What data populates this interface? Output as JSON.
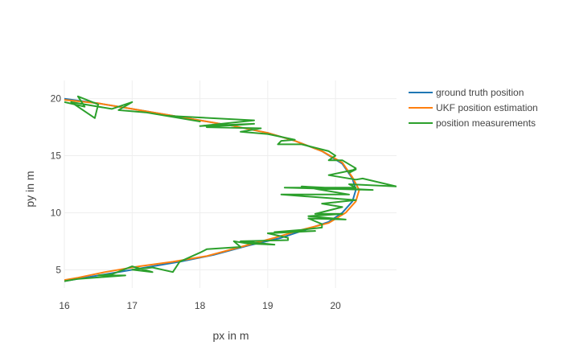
{
  "chart_data": {
    "type": "line",
    "xlabel": "px in m",
    "ylabel": "py in m",
    "xlim": [
      16,
      20.9
    ],
    "ylim": [
      3.4,
      21.6
    ],
    "x_ticks": [
      16,
      17,
      18,
      19,
      20
    ],
    "y_ticks": [
      5,
      10,
      15,
      20
    ],
    "grid": true,
    "legend_position": "top-right",
    "series": [
      {
        "name": "ground truth position",
        "color": "#1f77b4",
        "points": [
          [
            16.0,
            20.0
          ],
          [
            16.5,
            19.6
          ],
          [
            17.0,
            19.1
          ],
          [
            17.5,
            18.6
          ],
          [
            18.0,
            18.1
          ],
          [
            18.5,
            17.6
          ],
          [
            19.0,
            17.0
          ],
          [
            19.4,
            16.3
          ],
          [
            19.8,
            15.4
          ],
          [
            20.1,
            14.3
          ],
          [
            20.25,
            13.0
          ],
          [
            20.3,
            12.0
          ],
          [
            20.25,
            11.0
          ],
          [
            20.1,
            10.0
          ],
          [
            19.9,
            9.2
          ],
          [
            19.6,
            8.6
          ],
          [
            19.2,
            7.8
          ],
          [
            18.7,
            7.1
          ],
          [
            18.2,
            6.3
          ],
          [
            17.7,
            5.7
          ],
          [
            17.2,
            5.2
          ],
          [
            16.7,
            4.7
          ],
          [
            16.3,
            4.3
          ],
          [
            16.0,
            4.0
          ]
        ]
      },
      {
        "name": "UKF position estimation",
        "color": "#ff7f0e",
        "points": [
          [
            16.0,
            19.9
          ],
          [
            16.5,
            19.6
          ],
          [
            17.0,
            19.1
          ],
          [
            17.5,
            18.6
          ],
          [
            18.0,
            18.1
          ],
          [
            18.5,
            17.6
          ],
          [
            19.0,
            17.0
          ],
          [
            19.4,
            16.3
          ],
          [
            19.8,
            15.4
          ],
          [
            20.1,
            14.4
          ],
          [
            20.25,
            13.1
          ],
          [
            20.35,
            12.0
          ],
          [
            20.3,
            11.0
          ],
          [
            20.15,
            10.0
          ],
          [
            19.9,
            9.1
          ],
          [
            19.5,
            8.5
          ],
          [
            19.1,
            7.8
          ],
          [
            18.6,
            7.0
          ],
          [
            18.1,
            6.2
          ],
          [
            17.6,
            5.7
          ],
          [
            17.1,
            5.3
          ],
          [
            16.6,
            4.8
          ],
          [
            16.2,
            4.3
          ],
          [
            16.0,
            4.1
          ]
        ]
      },
      {
        "name": "position measurements",
        "color": "#2ca02c",
        "points": [
          [
            16.0,
            19.7
          ],
          [
            16.3,
            19.3
          ],
          [
            16.2,
            20.2
          ],
          [
            16.5,
            19.5
          ],
          [
            16.45,
            18.3
          ],
          [
            16.1,
            19.7
          ],
          [
            16.7,
            19.1
          ],
          [
            17.0,
            19.7
          ],
          [
            16.8,
            19.0
          ],
          [
            17.2,
            18.8
          ],
          [
            18.0,
            18.0
          ],
          [
            17.5,
            18.5
          ],
          [
            18.8,
            18.1
          ],
          [
            18.0,
            17.6
          ],
          [
            18.4,
            17.7
          ],
          [
            18.8,
            17.8
          ],
          [
            18.1,
            17.5
          ],
          [
            18.9,
            17.4
          ],
          [
            18.6,
            17.1
          ],
          [
            19.0,
            16.9
          ],
          [
            19.4,
            16.4
          ],
          [
            19.2,
            16.3
          ],
          [
            19.15,
            16.0
          ],
          [
            19.5,
            16.0
          ],
          [
            19.9,
            15.4
          ],
          [
            20.0,
            15.0
          ],
          [
            19.9,
            14.6
          ],
          [
            20.1,
            14.6
          ],
          [
            20.3,
            13.9
          ],
          [
            20.2,
            13.5
          ],
          [
            20.3,
            13.8
          ],
          [
            19.9,
            13.3
          ],
          [
            20.3,
            12.9
          ],
          [
            20.4,
            13.0
          ],
          [
            20.9,
            12.3
          ],
          [
            20.2,
            12.5
          ],
          [
            20.3,
            12.2
          ],
          [
            19.25,
            12.2
          ],
          [
            20.55,
            12.0
          ],
          [
            19.5,
            12.3
          ],
          [
            20.2,
            11.6
          ],
          [
            19.2,
            11.6
          ],
          [
            20.3,
            11.1
          ],
          [
            19.8,
            10.8
          ],
          [
            20.1,
            10.5
          ],
          [
            19.9,
            10.2
          ],
          [
            19.7,
            9.9
          ],
          [
            20.1,
            9.9
          ],
          [
            19.6,
            9.7
          ],
          [
            20.15,
            9.4
          ],
          [
            19.6,
            9.5
          ],
          [
            19.8,
            9.0
          ],
          [
            19.8,
            8.7
          ],
          [
            19.5,
            8.5
          ],
          [
            19.1,
            8.3
          ],
          [
            19.7,
            8.4
          ],
          [
            19.0,
            8.2
          ],
          [
            19.3,
            7.8
          ],
          [
            19.3,
            7.6
          ],
          [
            18.6,
            7.5
          ],
          [
            19.1,
            7.2
          ],
          [
            18.7,
            7.3
          ],
          [
            18.5,
            7.5
          ],
          [
            18.6,
            7.0
          ],
          [
            18.1,
            6.8
          ],
          [
            18.0,
            6.5
          ],
          [
            17.7,
            5.7
          ],
          [
            17.6,
            4.8
          ],
          [
            17.3,
            5.2
          ],
          [
            17.0,
            5.0
          ],
          [
            17.3,
            4.8
          ],
          [
            17.0,
            5.3
          ],
          [
            16.7,
            4.6
          ],
          [
            16.5,
            4.5
          ],
          [
            16.9,
            4.5
          ],
          [
            16.2,
            4.2
          ],
          [
            16.0,
            4.0
          ]
        ]
      }
    ]
  }
}
